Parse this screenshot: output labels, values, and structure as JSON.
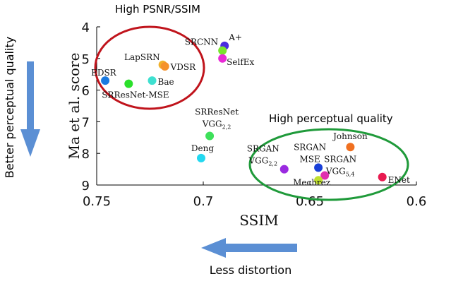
{
  "chart_data": {
    "type": "scatter",
    "xlabel": "SSIM",
    "ylabel": "Ma et al. score",
    "xlim": [
      0.75,
      0.6
    ],
    "ylim": [
      9,
      4
    ],
    "x_ticks": [
      "0.75",
      "0.7",
      "0.65",
      "0.6"
    ],
    "y_ticks": [
      "4",
      "5",
      "6",
      "7",
      "8",
      "9"
    ],
    "x_reversed": true,
    "y_reversed": true,
    "points": [
      {
        "label": "A+",
        "x": 0.69,
        "y": 4.6,
        "color": "#4a2be0"
      },
      {
        "label": "SRCNN",
        "x": 0.691,
        "y": 4.75,
        "color": "#7ae62e"
      },
      {
        "label": "SelfEx",
        "x": 0.691,
        "y": 5.0,
        "color": "#e92ad6"
      },
      {
        "label": "LapSRN",
        "x": 0.719,
        "y": 5.2,
        "color": "#f0b02a"
      },
      {
        "label": "VDSR",
        "x": 0.718,
        "y": 5.25,
        "color": "#f5912a"
      },
      {
        "label": "EDSR",
        "x": 0.746,
        "y": 5.7,
        "color": "#1a7ae0"
      },
      {
        "label": "Bae",
        "x": 0.724,
        "y": 5.7,
        "color": "#3ee0d0"
      },
      {
        "label": "SRResNet-MSE",
        "x": 0.735,
        "y": 5.8,
        "color": "#2ae02a"
      },
      {
        "label": "SRResNet",
        "sub_label": "VGG",
        "sub": "2,2",
        "x": 0.697,
        "y": 7.45,
        "color": "#3ee05a"
      },
      {
        "label": "Deng",
        "x": 0.701,
        "y": 8.15,
        "color": "#22d8f0"
      },
      {
        "label": "Johnson",
        "x": 0.631,
        "y": 7.8,
        "color": "#f07020"
      },
      {
        "label": "SRGAN",
        "sub_label": "VGG",
        "sub": "2,2",
        "x": 0.662,
        "y": 8.5,
        "color": "#9a2ae0"
      },
      {
        "label": "SRGAN",
        "sub_label": "MSE",
        "x": 0.646,
        "y": 8.45,
        "color": "#1a40d8"
      },
      {
        "label": "SRGAN",
        "sub_label": "VGG",
        "sub": "5,4",
        "x": 0.643,
        "y": 8.7,
        "color": "#e030b0"
      },
      {
        "label": "Mechrez",
        "x": 0.646,
        "y": 8.85,
        "color": "#c0e030"
      },
      {
        "label": "ENet",
        "x": 0.616,
        "y": 8.75,
        "color": "#e81a50"
      }
    ],
    "annotations": {
      "high_psnr": "High PSNR/SSIM",
      "high_perceptual": "High perceptual quality",
      "better_perceptual": "Better perceptual quality",
      "less_distortion": "Less distortion"
    },
    "colors": {
      "psnr_ellipse": "#c0141c",
      "perceptual_ellipse": "#1f9a3a",
      "arrow": "#5b8fd4"
    }
  }
}
